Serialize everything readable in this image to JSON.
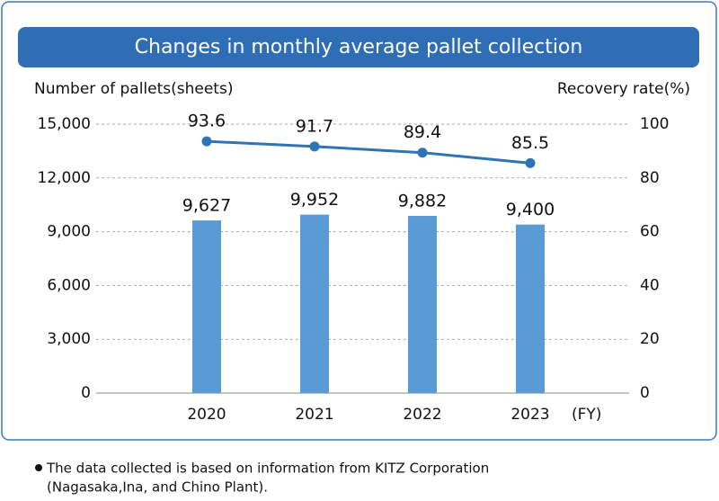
{
  "chart_data": {
    "type": "combo",
    "title": "Changes in monthly average pallet collection",
    "y_label": "Number of pallets(sheets)",
    "y2_label": "Recovery rate(%)",
    "x_unit": "(FY)",
    "categories": [
      "2020",
      "2021",
      "2022",
      "2023"
    ],
    "series": [
      {
        "type": "bar",
        "color": "#5b9bd5",
        "values": [
          9627,
          9952,
          9882,
          9400
        ],
        "value_labels": [
          "9,627",
          "9,952",
          "9,882",
          "9,400"
        ]
      },
      {
        "type": "line",
        "axis": "y2",
        "color": "#2e75b6",
        "values": [
          93.6,
          91.7,
          89.4,
          85.5
        ]
      }
    ],
    "ylim": [
      0,
      15000
    ],
    "yticks": [
      0,
      {
        "value": 3000,
        "label": "3,000"
      },
      {
        "value": 6000,
        "label": "6,000"
      },
      {
        "value": 9000,
        "label": "9,000"
      },
      {
        "value": 12000,
        "label": "12,000"
      },
      {
        "value": 15000,
        "label": "15,000"
      }
    ],
    "y2lim": [
      0,
      100
    ],
    "y2ticks": [
      0,
      20,
      40,
      60,
      80,
      100
    ],
    "grid": true,
    "footnote": [
      "The data collected is based on information from KITZ Corporation",
      "(Nagasaka,Ina, and Chino Plant)."
    ]
  }
}
